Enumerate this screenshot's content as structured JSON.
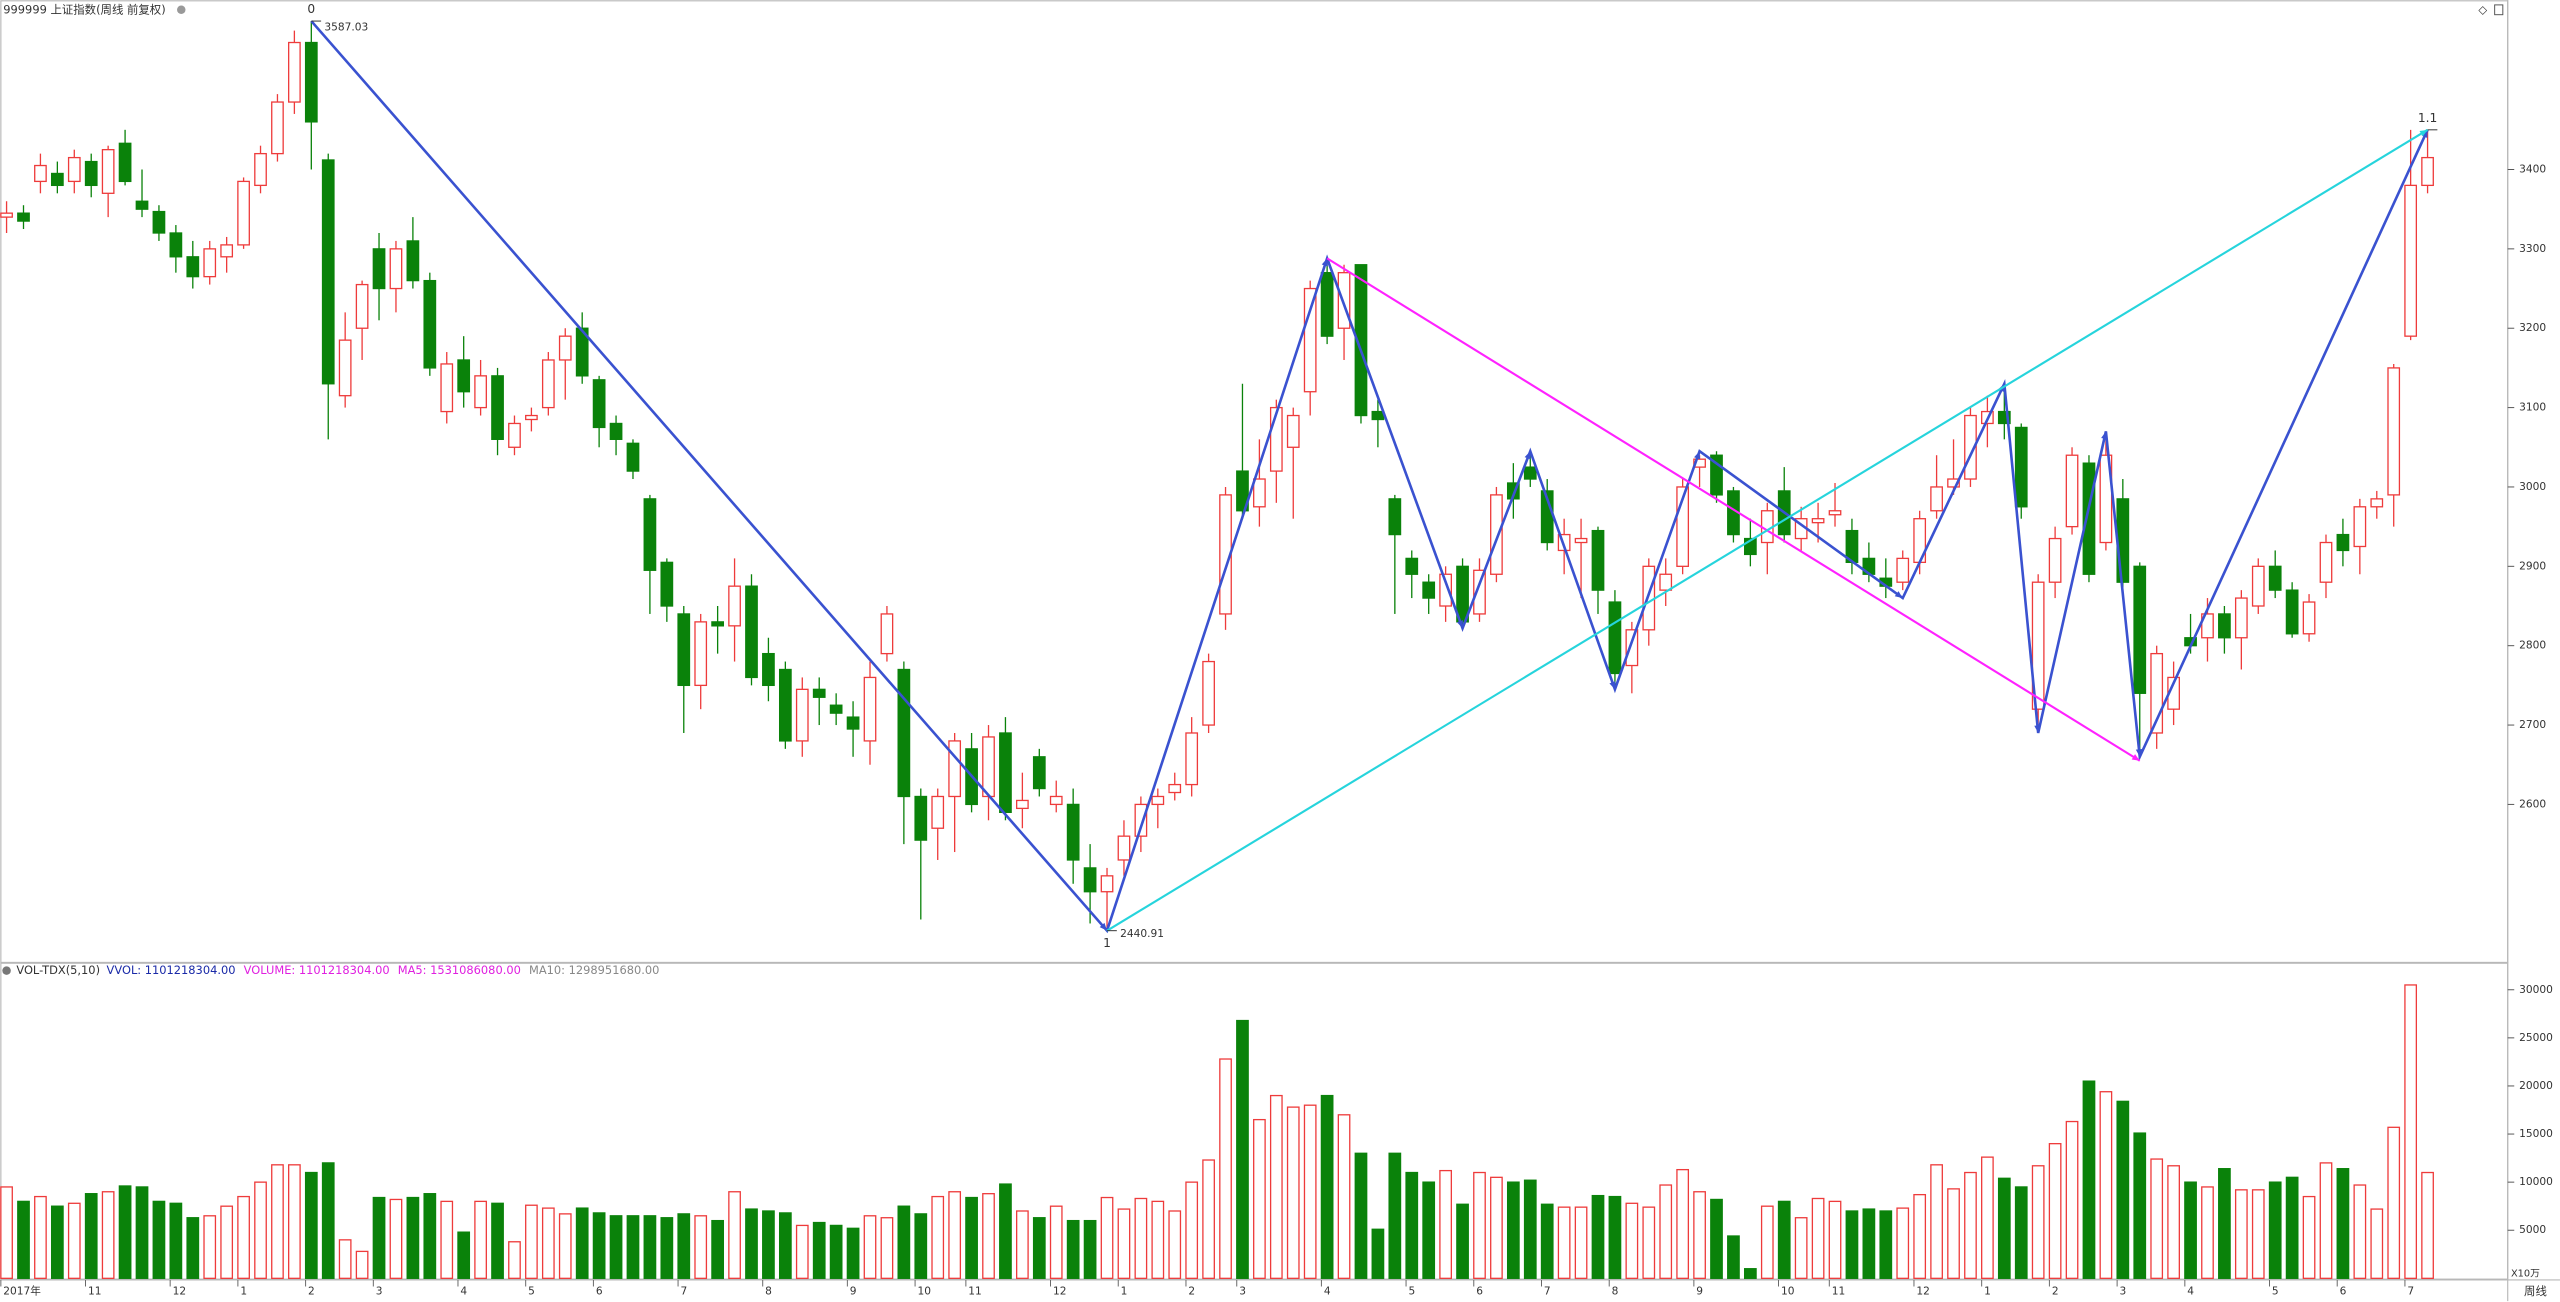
{
  "chart_data": [
    {
      "type": "candlestick",
      "title": "999999 上证指数(周线 前复权)",
      "up_color": "#ee3b3b",
      "down_color": "#0a820a",
      "ylim": [
        2404,
        3593
      ],
      "yticks": [
        2600,
        2700,
        2800,
        2900,
        3000,
        3100,
        3200,
        3300,
        3400
      ],
      "ohlc": [
        [
          3340,
          3360,
          3320,
          3345
        ],
        [
          3345,
          3355,
          3325,
          3335
        ],
        [
          3385,
          3420,
          3370,
          3405
        ],
        [
          3395,
          3410,
          3370,
          3380
        ],
        [
          3385,
          3425,
          3370,
          3415
        ],
        [
          3410,
          3420,
          3365,
          3380
        ],
        [
          3370,
          3430,
          3340,
          3425
        ],
        [
          3433,
          3450,
          3380,
          3385
        ],
        [
          3360,
          3400,
          3340,
          3350
        ],
        [
          3347,
          3355,
          3310,
          3320
        ],
        [
          3320,
          3330,
          3270,
          3290
        ],
        [
          3290,
          3310,
          3250,
          3265
        ],
        [
          3265,
          3310,
          3255,
          3300
        ],
        [
          3290,
          3315,
          3270,
          3305
        ],
        [
          3305,
          3390,
          3300,
          3385
        ],
        [
          3380,
          3430,
          3370,
          3420
        ],
        [
          3420,
          3495,
          3410,
          3485
        ],
        [
          3485,
          3575,
          3470,
          3560
        ],
        [
          3560,
          3587.03,
          3400,
          3460
        ],
        [
          3412,
          3420,
          3060,
          3130
        ],
        [
          3115,
          3220,
          3100,
          3185
        ],
        [
          3200,
          3260,
          3160,
          3255
        ],
        [
          3300,
          3320,
          3210,
          3250
        ],
        [
          3250,
          3310,
          3220,
          3300
        ],
        [
          3310,
          3340,
          3250,
          3260
        ],
        [
          3260,
          3270,
          3140,
          3150
        ],
        [
          3095,
          3170,
          3080,
          3155
        ],
        [
          3160,
          3190,
          3100,
          3120
        ],
        [
          3100,
          3160,
          3090,
          3140
        ],
        [
          3140,
          3150,
          3040,
          3060
        ],
        [
          3050,
          3090,
          3040,
          3080
        ],
        [
          3085,
          3100,
          3070,
          3090
        ],
        [
          3100,
          3170,
          3090,
          3160
        ],
        [
          3160,
          3200,
          3110,
          3190
        ],
        [
          3200,
          3220,
          3130,
          3140
        ],
        [
          3135,
          3140,
          3050,
          3075
        ],
        [
          3080,
          3090,
          3040,
          3060
        ],
        [
          3055,
          3060,
          3010,
          3020
        ],
        [
          2985,
          2990,
          2840,
          2895
        ],
        [
          2905,
          2910,
          2830,
          2850
        ],
        [
          2840,
          2850,
          2690,
          2750
        ],
        [
          2750,
          2840,
          2720,
          2830
        ],
        [
          2830,
          2850,
          2790,
          2825
        ],
        [
          2825,
          2910,
          2780,
          2875
        ],
        [
          2875,
          2890,
          2750,
          2760
        ],
        [
          2790,
          2810,
          2730,
          2750
        ],
        [
          2770,
          2780,
          2670,
          2680
        ],
        [
          2680,
          2760,
          2660,
          2745
        ],
        [
          2745,
          2760,
          2700,
          2735
        ],
        [
          2725,
          2740,
          2700,
          2715
        ],
        [
          2710,
          2730,
          2660,
          2695
        ],
        [
          2680,
          2780,
          2650,
          2760
        ],
        [
          2790,
          2850,
          2780,
          2840
        ],
        [
          2770,
          2780,
          2550,
          2610
        ],
        [
          2610,
          2620,
          2455,
          2555
        ],
        [
          2570,
          2620,
          2530,
          2610
        ],
        [
          2610,
          2690,
          2540,
          2680
        ],
        [
          2670,
          2690,
          2590,
          2600
        ],
        [
          2610,
          2700,
          2580,
          2685
        ],
        [
          2690,
          2710,
          2580,
          2590
        ],
        [
          2595,
          2640,
          2570,
          2605
        ],
        [
          2660,
          2670,
          2610,
          2620
        ],
        [
          2600,
          2630,
          2590,
          2610
        ],
        [
          2600,
          2620,
          2500,
          2530
        ],
        [
          2520,
          2550,
          2450,
          2490
        ],
        [
          2490,
          2520,
          2440.91,
          2510
        ],
        [
          2530,
          2580,
          2510,
          2560
        ],
        [
          2560,
          2610,
          2540,
          2600
        ],
        [
          2600,
          2620,
          2570,
          2610
        ],
        [
          2615,
          2640,
          2605,
          2625
        ],
        [
          2625,
          2710,
          2610,
          2690
        ],
        [
          2700,
          2790,
          2690,
          2780
        ],
        [
          2840,
          3000,
          2820,
          2990
        ],
        [
          3020,
          3130,
          2960,
          2970
        ],
        [
          2975,
          3060,
          2950,
          3010
        ],
        [
          3020,
          3110,
          2980,
          3100
        ],
        [
          3050,
          3100,
          2960,
          3090
        ],
        [
          3120,
          3260,
          3090,
          3250
        ],
        [
          3270,
          3288,
          3180,
          3190
        ],
        [
          3200,
          3280,
          3160,
          3270
        ],
        [
          3280,
          3280,
          3080,
          3090
        ],
        [
          3095,
          3110,
          3050,
          3085
        ],
        [
          2985,
          2990,
          2840,
          2940
        ],
        [
          2910,
          2920,
          2860,
          2890
        ],
        [
          2880,
          2890,
          2840,
          2860
        ],
        [
          2850,
          2900,
          2830,
          2890
        ],
        [
          2900,
          2910,
          2822,
          2830
        ],
        [
          2840,
          2910,
          2830,
          2895
        ],
        [
          2890,
          3000,
          2880,
          2990
        ],
        [
          3005,
          3030,
          2960,
          2985
        ],
        [
          3025,
          3045,
          3000,
          3010
        ],
        [
          2995,
          3010,
          2920,
          2930
        ],
        [
          2920,
          2960,
          2890,
          2940
        ],
        [
          2930,
          2960,
          2860,
          2935
        ],
        [
          2945,
          2950,
          2840,
          2870
        ],
        [
          2855,
          2870,
          2745,
          2765
        ],
        [
          2775,
          2830,
          2740,
          2820
        ],
        [
          2820,
          2910,
          2800,
          2900
        ],
        [
          2870,
          2910,
          2850,
          2890
        ],
        [
          2900,
          3010,
          2890,
          3000
        ],
        [
          3025,
          3040,
          3000,
          3035
        ],
        [
          3040,
          3045,
          2980,
          2990
        ],
        [
          2995,
          3000,
          2930,
          2940
        ],
        [
          2935,
          2960,
          2900,
          2915
        ],
        [
          2930,
          2980,
          2890,
          2970
        ],
        [
          2995,
          3025,
          2930,
          2940
        ],
        [
          2935,
          2975,
          2920,
          2960
        ],
        [
          2955,
          2980,
          2930,
          2960
        ],
        [
          2965,
          3005,
          2950,
          2970
        ],
        [
          2945,
          2960,
          2890,
          2905
        ],
        [
          2910,
          2930,
          2880,
          2890
        ],
        [
          2885,
          2910,
          2860,
          2875
        ],
        [
          2880,
          2920,
          2870,
          2910
        ],
        [
          2905,
          2970,
          2890,
          2960
        ],
        [
          2970,
          3040,
          2960,
          3000
        ],
        [
          3000,
          3060,
          2990,
          3010
        ],
        [
          3010,
          3100,
          3000,
          3090
        ],
        [
          3080,
          3115,
          3050,
          3095
        ],
        [
          3095,
          3130,
          3060,
          3080
        ],
        [
          3075,
          3080,
          2960,
          2975
        ],
        [
          2720,
          2890,
          2690,
          2880
        ],
        [
          2880,
          2950,
          2860,
          2935
        ],
        [
          2950,
          3050,
          2940,
          3040
        ],
        [
          3030,
          3040,
          2880,
          2890
        ],
        [
          2930,
          3070,
          2920,
          3040
        ],
        [
          2985,
          3010,
          2870,
          2880
        ],
        [
          2900,
          2905,
          2660,
          2740
        ],
        [
          2690,
          2800,
          2670,
          2790
        ],
        [
          2720,
          2780,
          2700,
          2760
        ],
        [
          2810,
          2840,
          2790,
          2800
        ],
        [
          2810,
          2860,
          2780,
          2840
        ],
        [
          2840,
          2850,
          2790,
          2810
        ],
        [
          2810,
          2870,
          2770,
          2860
        ],
        [
          2850,
          2910,
          2840,
          2900
        ],
        [
          2900,
          2920,
          2860,
          2870
        ],
        [
          2870,
          2880,
          2810,
          2815
        ],
        [
          2815,
          2865,
          2805,
          2855
        ],
        [
          2880,
          2940,
          2860,
          2930
        ],
        [
          2940,
          2960,
          2900,
          2920
        ],
        [
          2925,
          2985,
          2890,
          2975
        ],
        [
          2975,
          2995,
          2960,
          2985
        ],
        [
          2990,
          3155,
          2950,
          3150
        ],
        [
          3190,
          3450,
          3185,
          3380
        ],
        [
          3380,
          3450,
          3370,
          3415
        ]
      ],
      "lines": [
        {
          "color": "#3a52d0",
          "x": [
            18,
            65,
            78,
            86,
            90,
            95,
            100,
            112,
            118,
            120,
            124,
            126,
            143
          ],
          "values": [
            3587.03,
            2440.91,
            3288,
            2822,
            3045,
            2745,
            3045,
            2860,
            3130,
            2690,
            3070,
            2660,
            3450
          ]
        },
        {
          "color": "#ff22ff",
          "x": [
            78,
            126
          ],
          "values": [
            3288,
            2655
          ]
        },
        {
          "color": "#26d4dc",
          "x": [
            65,
            143
          ],
          "values": [
            2440.91,
            3450
          ]
        }
      ],
      "annotations": [
        {
          "at": [
            18,
            3587.03
          ],
          "mark": "0",
          "label": "3587.03",
          "side": "above"
        },
        {
          "at": [
            65,
            2440.91
          ],
          "mark": "1",
          "label": "2440.91",
          "side": "below"
        },
        {
          "at": [
            143,
            3450
          ],
          "mark": "1.1",
          "side": "above"
        }
      ]
    },
    {
      "type": "bar",
      "title": "VOL-TDX(5,10)",
      "indicators": [
        {
          "text": "VVOL: 1101218304.00",
          "color": "#1a2aa8"
        },
        {
          "text": "VOLUME: 1101218304.00",
          "color": "#e020e0"
        },
        {
          "text": "MA5: 1531086080.00",
          "color": "#e020e0"
        },
        {
          "text": "MA10: 1298951680.00",
          "color": "#888888"
        }
      ],
      "unit": "X10万",
      "period": "周线",
      "ylim": [
        0,
        31400
      ],
      "yticks": [
        5000,
        10000,
        15000,
        20000,
        25000,
        30000
      ],
      "values": [
        9500,
        8000,
        8500,
        7500,
        7800,
        8800,
        9000,
        9600,
        9500,
        8000,
        7800,
        6300,
        6500,
        7500,
        8500,
        10000,
        11800,
        11800,
        11000,
        12000,
        4000,
        2800,
        8400,
        8200,
        8400,
        8800,
        8000,
        4800,
        8000,
        7800,
        3800,
        7600,
        7300,
        6700,
        7300,
        6800,
        6500,
        6500,
        6500,
        6300,
        6700,
        6500,
        6000,
        9000,
        7200,
        7000,
        6800,
        5500,
        5800,
        5500,
        5200,
        6500,
        6300,
        7500,
        6700,
        8500,
        9000,
        8400,
        8800,
        9800,
        7000,
        6300,
        7500,
        6000,
        6000,
        8400,
        7200,
        8300,
        8000,
        7000,
        10000,
        12300,
        22800,
        26800,
        16500,
        19000,
        17800,
        18000,
        19000,
        17000,
        13000,
        5100,
        13000,
        11000,
        10000,
        11200,
        7700,
        11000,
        10500,
        10000,
        10200,
        7700,
        7400,
        7400,
        8600,
        8500,
        7800,
        7400,
        9700,
        11300,
        9000,
        8200,
        4400,
        1000,
        7500,
        8000,
        6300,
        8300,
        8000,
        7000,
        7200,
        7000,
        7300,
        8700,
        11800,
        9300,
        11000,
        12600,
        10400,
        9500,
        11700,
        14000,
        16300,
        20500,
        19400,
        18400,
        15100,
        12400,
        11700,
        10000,
        9500,
        11400,
        9200,
        9200,
        10000,
        10500,
        8500,
        12000,
        11400,
        9700,
        7200,
        15700,
        30500,
        11000
      ],
      "categories": [
        "2017年",
        null,
        null,
        null,
        null,
        "11",
        null,
        null,
        null,
        null,
        "12",
        null,
        null,
        null,
        "1",
        null,
        null,
        null,
        "2",
        null,
        null,
        null,
        "3",
        null,
        null,
        null,
        null,
        "4",
        null,
        null,
        null,
        "5",
        null,
        null,
        null,
        "6",
        null,
        null,
        null,
        null,
        "7",
        null,
        null,
        null,
        null,
        "8",
        null,
        null,
        null,
        null,
        "9",
        null,
        null,
        null,
        "10",
        null,
        null,
        "11",
        null,
        null,
        null,
        null,
        "12",
        null,
        null,
        null,
        "1",
        null,
        null,
        null,
        "2",
        null,
        null,
        "3",
        null,
        null,
        null,
        null,
        "4",
        null,
        null,
        null,
        null,
        "5",
        null,
        null,
        null,
        "6",
        null,
        null,
        null,
        "7",
        null,
        null,
        null,
        "8",
        null,
        null,
        null,
        null,
        "9",
        null,
        null,
        null,
        null,
        "10",
        null,
        null,
        "11",
        null,
        null,
        null,
        null,
        "12",
        null,
        null,
        null,
        "1",
        null,
        null,
        null,
        "2",
        null,
        null,
        null,
        "3",
        null,
        null,
        null,
        "4",
        null,
        null,
        null,
        null,
        "5",
        null,
        null,
        null,
        "6",
        null,
        null,
        null,
        "7",
        null
      ]
    }
  ]
}
